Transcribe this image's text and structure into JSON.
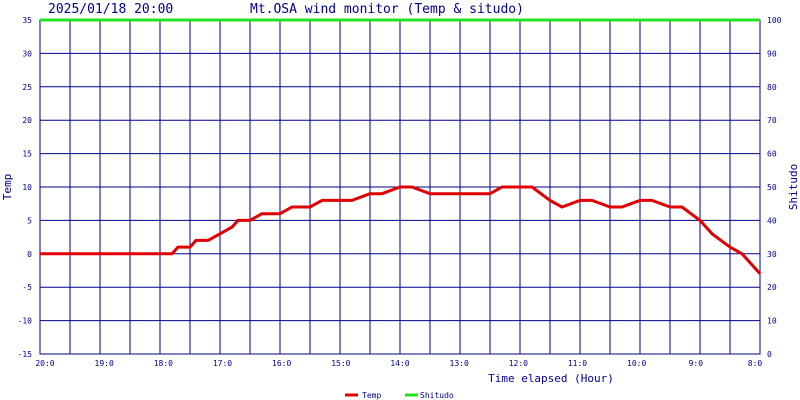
{
  "header": {
    "datetime": "2025/01/18 20:00",
    "title": "Mt.OSA wind monitor (Temp & situdo)"
  },
  "colors": {
    "axis": "#00008b",
    "grid": "#00008b",
    "temp": "#e00000",
    "situdo": "#22e022",
    "background": "#ffffff"
  },
  "chart_data": {
    "type": "line",
    "title": "Mt.OSA wind monitor (Temp & situdo)",
    "xlabel": "Time elapsed (Hour)",
    "ylabel_left": "Temp",
    "ylabel_right": "Shitudo",
    "ylim_left": [
      -15,
      35
    ],
    "ylim_right": [
      0,
      100
    ],
    "y_ticks_left": [
      -15,
      -10,
      -5,
      0,
      5,
      10,
      15,
      20,
      25,
      30,
      35
    ],
    "y_ticks_right": [
      0,
      10,
      20,
      30,
      40,
      50,
      60,
      70,
      80,
      90,
      100
    ],
    "x_tick_labels": [
      "20:0",
      "19:0",
      "18:0",
      "17:0",
      "16:0",
      "15:0",
      "14:0",
      "13:0",
      "12:0",
      "11:0",
      "10:0",
      "9:0",
      "8:0"
    ],
    "x_hours_back": [
      0,
      12
    ],
    "grid": true,
    "legend_position": "bottom-center",
    "series": [
      {
        "name": "Temp",
        "axis": "left",
        "color": "#e00000",
        "x_hours_back": [
          0,
          0.5,
          1,
          1.5,
          2,
          2.2,
          2.3,
          2.5,
          2.6,
          2.8,
          3,
          3.2,
          3.3,
          3.5,
          3.7,
          4,
          4.2,
          4.5,
          4.7,
          5,
          5.2,
          5.5,
          5.7,
          6,
          6.2,
          6.5,
          6.7,
          7,
          7.2,
          7.5,
          7.7,
          8,
          8.2,
          8.5,
          8.7,
          9,
          9.2,
          9.5,
          9.7,
          10,
          10.2,
          10.5,
          10.7,
          11,
          11.2,
          11.5,
          11.7,
          12
        ],
        "values": [
          0,
          0,
          0,
          0,
          0,
          0,
          1,
          1,
          2,
          2,
          3,
          4,
          5,
          5,
          6,
          6,
          7,
          7,
          8,
          8,
          8,
          9,
          9,
          10,
          10,
          9,
          9,
          9,
          9,
          9,
          10,
          10,
          10,
          8,
          7,
          8,
          8,
          7,
          7,
          8,
          8,
          7,
          7,
          5,
          3,
          1,
          0,
          -3
        ]
      },
      {
        "name": "Shitudo",
        "axis": "right",
        "color": "#22e022",
        "x_hours_back": [
          0,
          12
        ],
        "values": [
          100,
          100
        ]
      }
    ]
  }
}
